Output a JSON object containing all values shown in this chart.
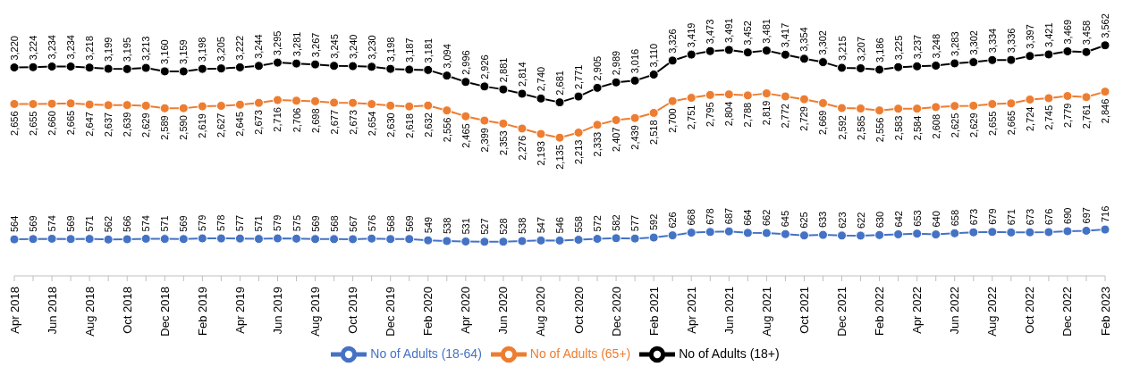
{
  "chart_data": {
    "type": "line",
    "categories": [
      "Apr 2018",
      null,
      "Jun 2018",
      null,
      "Aug 2018",
      null,
      "Oct 2018",
      null,
      "Dec 2018",
      null,
      "Feb 2019",
      null,
      "Apr 2019",
      null,
      "Jun 2019",
      null,
      "Aug 2019",
      null,
      "Oct 2019",
      null,
      "Dec 2019",
      null,
      "Feb 2020",
      null,
      "Apr 2020",
      null,
      "Jun 2020",
      null,
      "Aug 2020",
      null,
      "Oct 2020",
      null,
      "Dec 2020",
      null,
      "Feb 2021",
      null,
      "Apr 2021",
      null,
      "Jun 2021",
      null,
      "Aug 2021",
      null,
      "Oct 2021",
      null,
      "Dec 2021",
      null,
      "Feb 2022",
      null,
      "Apr 2022",
      null,
      "Jun 2022",
      null,
      "Aug 2022",
      null,
      "Oct 2022",
      null,
      "Dec 2022",
      null,
      "Feb 2023"
    ],
    "series": [
      {
        "name": "No of Adults (18-64)",
        "color": "#4472c4",
        "values": [
          564,
          569,
          574,
          569,
          571,
          562,
          566,
          574,
          571,
          569,
          579,
          578,
          577,
          571,
          579,
          575,
          569,
          568,
          567,
          576,
          568,
          569,
          549,
          538,
          531,
          527,
          528,
          538,
          547,
          546,
          558,
          572,
          582,
          577,
          592,
          626,
          668,
          678,
          687,
          664,
          662,
          645,
          625,
          633,
          623,
          622,
          630,
          642,
          653,
          640,
          658,
          673,
          679,
          671,
          673,
          676,
          690,
          697,
          716
        ],
        "value_labels": [
          "564",
          "569",
          "574",
          "569",
          "571",
          "562",
          "566",
          "574",
          "571",
          "569",
          "579",
          "578",
          "577",
          "571",
          "579",
          "575",
          "569",
          "568",
          "567",
          "576",
          "568",
          "569",
          "549",
          "538",
          "531",
          "527",
          "528",
          "538",
          "547",
          "546",
          "558",
          "572",
          "582",
          "577",
          "592",
          "626",
          "668",
          "678",
          "687",
          "664",
          "662",
          "645",
          "625",
          "633",
          "623",
          "622",
          "630",
          "642",
          "653",
          "640",
          "658",
          "673",
          "679",
          "671",
          "673",
          "676",
          "690",
          "697",
          "716"
        ]
      },
      {
        "name": "No of Adults (65+)",
        "color": "#ed7d31",
        "values": [
          2656,
          2655,
          2660,
          2665,
          2647,
          2637,
          2639,
          2629,
          2589,
          2590,
          2619,
          2627,
          2645,
          2673,
          2716,
          2706,
          2698,
          2677,
          2673,
          2654,
          2630,
          2618,
          2632,
          2556,
          2465,
          2399,
          2353,
          2276,
          2193,
          2135,
          2213,
          2333,
          2407,
          2439,
          2518,
          2700,
          2751,
          2795,
          2804,
          2788,
          2819,
          2772,
          2729,
          2669,
          2592,
          2585,
          2556,
          2583,
          2584,
          2608,
          2625,
          2629,
          2655,
          2665,
          2724,
          2745,
          2779,
          2761,
          2846
        ],
        "value_labels": [
          "2,656",
          "2,655",
          "2,660",
          "2,665",
          "2,647",
          "2,637",
          "2,639",
          "2,629",
          "2,589",
          "2,590",
          "2,619",
          "2,627",
          "2,645",
          "2,673",
          "2,716",
          "2,706",
          "2,698",
          "2,677",
          "2,673",
          "2,654",
          "2,630",
          "2,618",
          "2,632",
          "2,556",
          "2,465",
          "2,399",
          "2,353",
          "2,276",
          "2,193",
          "2,135",
          "2,213",
          "2,333",
          "2,407",
          "2,439",
          "2,518",
          "2,700",
          "2,751",
          "2,795",
          "2,804",
          "2,788",
          "2,819",
          "2,772",
          "2,729",
          "2,669",
          "2,592",
          "2,585",
          "2,556",
          "2,583",
          "2,584",
          "2,608",
          "2,625",
          "2,629",
          "2,655",
          "2,665",
          "2,724",
          "2,745",
          "2,779",
          "2,761",
          "2,846"
        ]
      },
      {
        "name": "No of Adults (18+)",
        "color": "#000000",
        "values": [
          3220,
          3224,
          3234,
          3234,
          3218,
          3199,
          3195,
          3213,
          3160,
          3159,
          3198,
          3205,
          3222,
          3244,
          3295,
          3281,
          3267,
          3245,
          3240,
          3230,
          3198,
          3187,
          3181,
          3094,
          2996,
          2926,
          2881,
          2814,
          2740,
          2681,
          2771,
          2905,
          2989,
          3016,
          3110,
          3326,
          3419,
          3473,
          3491,
          3452,
          3481,
          3417,
          3354,
          3302,
          3215,
          3207,
          3186,
          3225,
          3237,
          3248,
          3283,
          3302,
          3334,
          3336,
          3397,
          3421,
          3469,
          3458,
          3562
        ],
        "value_labels": [
          "3,220",
          "3,224",
          "3,234",
          "3,234",
          "3,218",
          "3,199",
          "3,195",
          "3,213",
          "3,160",
          "3,159",
          "3,198",
          "3,205",
          "3,222",
          "3,244",
          "3,295",
          "3,281",
          "3,267",
          "3,245",
          "3,240",
          "3,230",
          "3,198",
          "3,187",
          "3,181",
          "3,094",
          "2,996",
          "2,926",
          "2,881",
          "2,814",
          "2,740",
          "2,681",
          "2,771",
          "2,905",
          "2,989",
          "3,016",
          "3,110",
          "3,326",
          "3,419",
          "3,473",
          "3,491",
          "3,452",
          "3,481",
          "3,417",
          "3,354",
          "3,302",
          "3,215",
          "3,207",
          "3,186",
          "3,225",
          "3,237",
          "3,248",
          "3,283",
          "3,302",
          "3,334",
          "3,336",
          "3,397",
          "3,421",
          "3,469",
          "3,458",
          "3,562"
        ]
      }
    ],
    "marker": "circle",
    "line_style": "solid",
    "grid": false,
    "legend": "bottom"
  }
}
